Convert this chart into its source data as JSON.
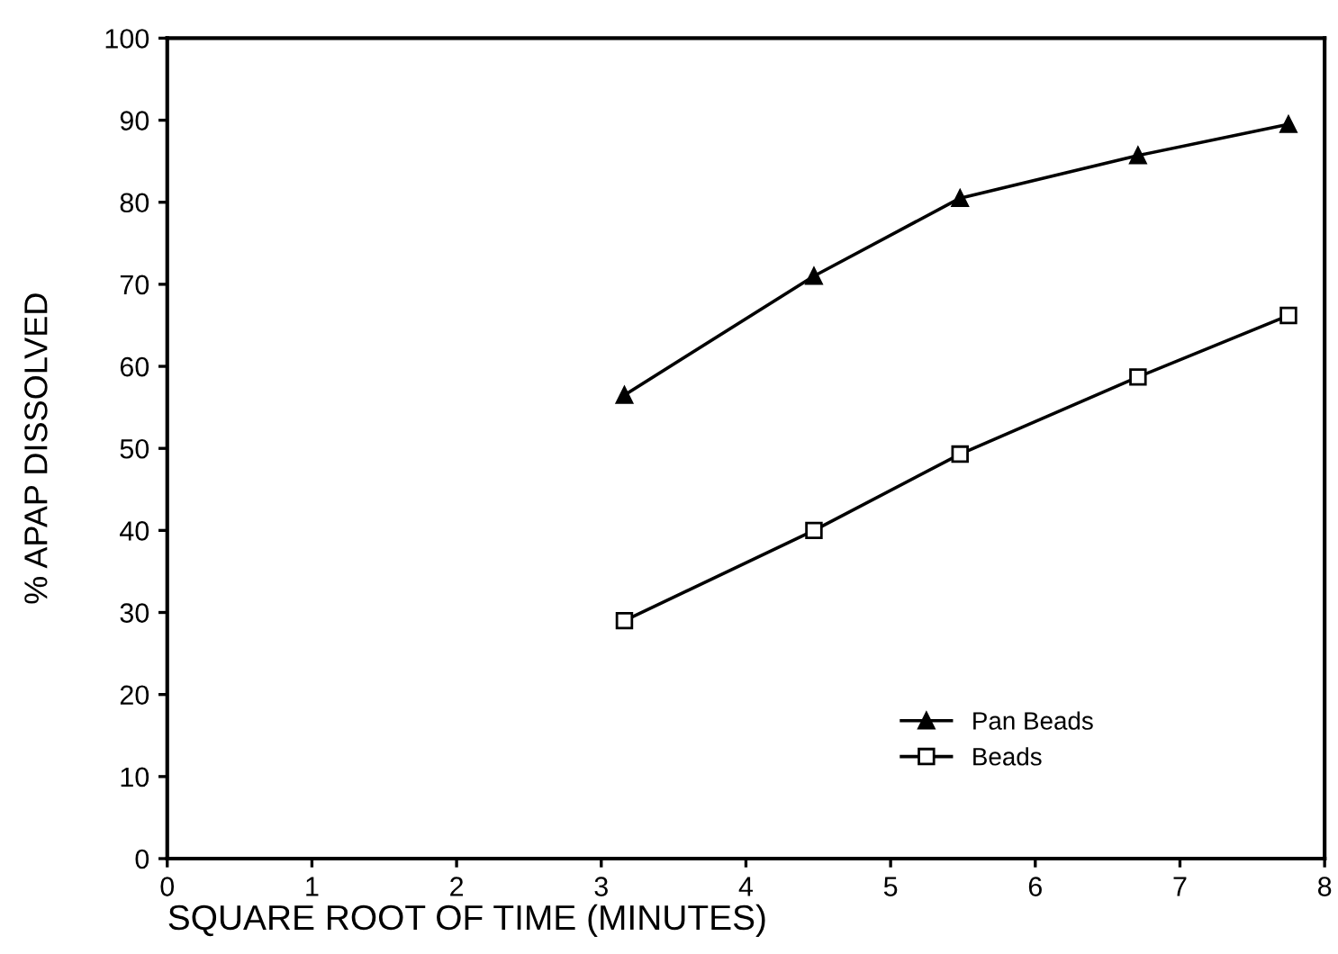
{
  "chart_data": {
    "type": "line",
    "xlabel": "SQUARE ROOT OF TIME (MINUTES)",
    "ylabel": "% APAP DISSOLVED",
    "x": [
      3.16,
      4.47,
      5.48,
      6.71,
      7.75
    ],
    "series": [
      {
        "name": "Pan Beads",
        "color": "#000000",
        "marker": "triangle",
        "values": [
          56.5,
          71,
          80.5,
          85.7,
          89.5
        ]
      },
      {
        "name": "Beads",
        "color": "#000000",
        "marker": "square",
        "values": [
          29,
          40,
          49.3,
          58.7,
          66.2
        ]
      }
    ],
    "xlim": [
      0,
      8
    ],
    "xticks": [
      0,
      1,
      2,
      3,
      4,
      5,
      6,
      7,
      8
    ],
    "ylim": [
      0,
      100
    ],
    "yticks": [
      0,
      10,
      20,
      30,
      40,
      50,
      60,
      70,
      80,
      90,
      100
    ],
    "grid": false,
    "legend": "bottom right",
    "line_style": "solid"
  }
}
